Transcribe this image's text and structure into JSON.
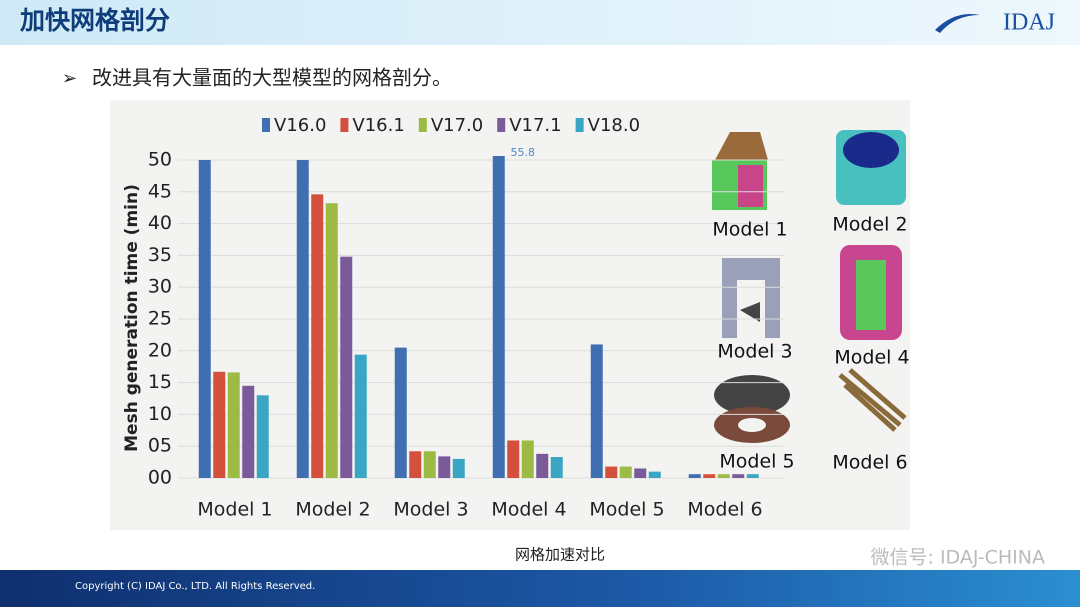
{
  "header": {
    "title": "加快网格剖分",
    "logo": "IDAJ"
  },
  "bullet": "改进具有大量面的大型模型的网格剖分。",
  "chart_data": {
    "type": "bar",
    "y_label": "Mesh generation time (min)",
    "categories": [
      "Model 1",
      "Model 2",
      "Model 3",
      "Model 4",
      "Model 5",
      "Model 6"
    ],
    "series": [
      {
        "name": "V16.0",
        "color": "#3f6fb0",
        "values": [
          50,
          50,
          20.5,
          55.8,
          21,
          0.6
        ],
        "value_labels": [
          null,
          null,
          null,
          "55.8",
          null,
          null
        ]
      },
      {
        "name": "V16.1",
        "color": "#d2503c",
        "values": [
          16.7,
          44.6,
          4.2,
          5.9,
          1.8,
          0.6
        ]
      },
      {
        "name": "V17.0",
        "color": "#9bbb44",
        "values": [
          16.6,
          43.2,
          4.2,
          5.9,
          1.8,
          0.6
        ]
      },
      {
        "name": "V17.1",
        "color": "#7b5a9a",
        "values": [
          14.5,
          34.8,
          3.4,
          3.8,
          1.5,
          0.6
        ]
      },
      {
        "name": "V18.0",
        "color": "#3aa6c4",
        "values": [
          13.0,
          19.4,
          3.0,
          3.3,
          1.0,
          0.6
        ]
      }
    ],
    "ylim": [
      0,
      50
    ],
    "yticks": [
      {
        "value": 0,
        "label": "00"
      },
      {
        "value": 5,
        "label": "05"
      },
      10,
      15,
      20,
      25,
      30,
      35,
      40,
      45,
      50
    ],
    "grid": true,
    "legend": "top"
  },
  "images": [
    {
      "label": "Model 1"
    },
    {
      "label": "Model 2"
    },
    {
      "label": "Model 3"
    },
    {
      "label": "Model 4"
    },
    {
      "label": "Model 5"
    },
    {
      "label": "Model 6"
    }
  ],
  "caption": "网格加速对比",
  "watermark": "微信号: IDAJ-CHINA",
  "footer": "Copyright (C) IDAJ Co., LTD. All Rights Reserved."
}
